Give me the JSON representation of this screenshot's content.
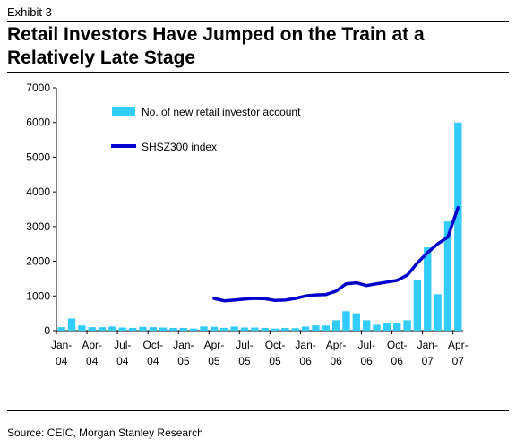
{
  "header": {
    "exhibit": "Exhibit 3",
    "title": "Retail Investors Have Jumped on the Train at a Relatively Late Stage"
  },
  "footer": {
    "source": "Source: CEIC, Morgan Stanley Research"
  },
  "chart_data": {
    "type": "bar",
    "title": "Retail Investors Have Jumped on the Train at a Relatively Late Stage",
    "xlabel": "",
    "ylabel": "",
    "ylim": [
      0,
      7000
    ],
    "yticks": [
      0,
      1000,
      2000,
      3000,
      4000,
      5000,
      6000,
      7000
    ],
    "grid": false,
    "legend_position": "top-left inside",
    "x_tick_labels": [
      {
        "month": "Jan-",
        "year": "04",
        "index": 0
      },
      {
        "month": "Apr-",
        "year": "04",
        "index": 3
      },
      {
        "month": "Jul-",
        "year": "04",
        "index": 6
      },
      {
        "month": "Oct-",
        "year": "04",
        "index": 9
      },
      {
        "month": "Jan-",
        "year": "05",
        "index": 12
      },
      {
        "month": "Apr-",
        "year": "05",
        "index": 15
      },
      {
        "month": "Jul-",
        "year": "05",
        "index": 18
      },
      {
        "month": "Oct-",
        "year": "05",
        "index": 21
      },
      {
        "month": "Jan-",
        "year": "06",
        "index": 24
      },
      {
        "month": "Apr-",
        "year": "06",
        "index": 27
      },
      {
        "month": "Jul-",
        "year": "06",
        "index": 30
      },
      {
        "month": "Oct-",
        "year": "06",
        "index": 33
      },
      {
        "month": "Jan-",
        "year": "07",
        "index": 36
      },
      {
        "month": "Apr-",
        "year": "07",
        "index": 39
      }
    ],
    "series": [
      {
        "name": "No. of new retail investor account",
        "type": "bar",
        "color": "#33ccff",
        "values": [
          100,
          350,
          150,
          100,
          100,
          120,
          90,
          80,
          110,
          100,
          90,
          80,
          80,
          60,
          120,
          110,
          80,
          120,
          90,
          90,
          80,
          60,
          80,
          70,
          120,
          150,
          150,
          300,
          560,
          500,
          300,
          170,
          220,
          220,
          300,
          1450,
          2400,
          1050,
          3150,
          6000
        ]
      },
      {
        "name": "SHSZ300 index",
        "type": "line",
        "color": "#0000cc",
        "start_index": 15,
        "values": [
          930,
          860,
          880,
          910,
          930,
          920,
          870,
          880,
          930,
          1000,
          1030,
          1040,
          1140,
          1350,
          1380,
          1300,
          1350,
          1400,
          1450,
          1600,
          1950,
          2250,
          2500,
          2700,
          3550
        ]
      }
    ]
  }
}
